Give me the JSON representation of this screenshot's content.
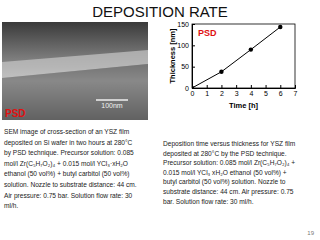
{
  "chart_data": {
    "type": "line",
    "annotation": "PSD",
    "x_label": "Time [h]",
    "y_label": "Thickness [nm]",
    "x": [
      0,
      2,
      4,
      6
    ],
    "series": [
      {
        "name": "PSD",
        "color": "#000000",
        "marker": "circle",
        "line_style": "solid",
        "values": [
          0,
          38,
          90,
          143
        ]
      }
    ],
    "xlim": [
      0,
      7
    ],
    "xticks": [
      0,
      1,
      2,
      3,
      4,
      5,
      6,
      7
    ],
    "ylim": [
      0,
      150
    ],
    "yticks": [
      0,
      50,
      100,
      150
    ],
    "grid": false
  },
  "page": {
    "title": "DEPOSITION RATE",
    "page_number": "19",
    "image_label": "PSD",
    "image_scale": "100nm",
    "left_caption": [
      "SEM image of cross-section of an YSZ film",
      "deposited on Si wafer in two hours at 280°C",
      "by PSD technique. Precursor solution: 0.085",
      "mol/l Zr(C₅H₇O₂)₄ + 0.015 mol/l YCl₃·xH₂O",
      "ethanol (50 vol%) + butyl carbitol (50 vol%)",
      "solution. Nozzle to substrate distance: 44 cm.",
      "Air pressure: 0.75 bar. Solution flow rate: 30",
      "ml/h."
    ],
    "right_caption": [
      "Deposition time versus thickness for YSZ film",
      "deposited at 280°C by the PSD technique.",
      "Precursor solution: 0.085 mol/l Zr(C₅H₇O₂)₄ +",
      "0.015 mol/l YCl₃ xH₂O ethanol (50 vol%) +",
      "butyl carbitol (50 vol%) solution. Nozzle to",
      "substrate distance: 44 cm. Air pressure: 0.75",
      "bar. Solution flow rate: 30 ml/h."
    ]
  }
}
